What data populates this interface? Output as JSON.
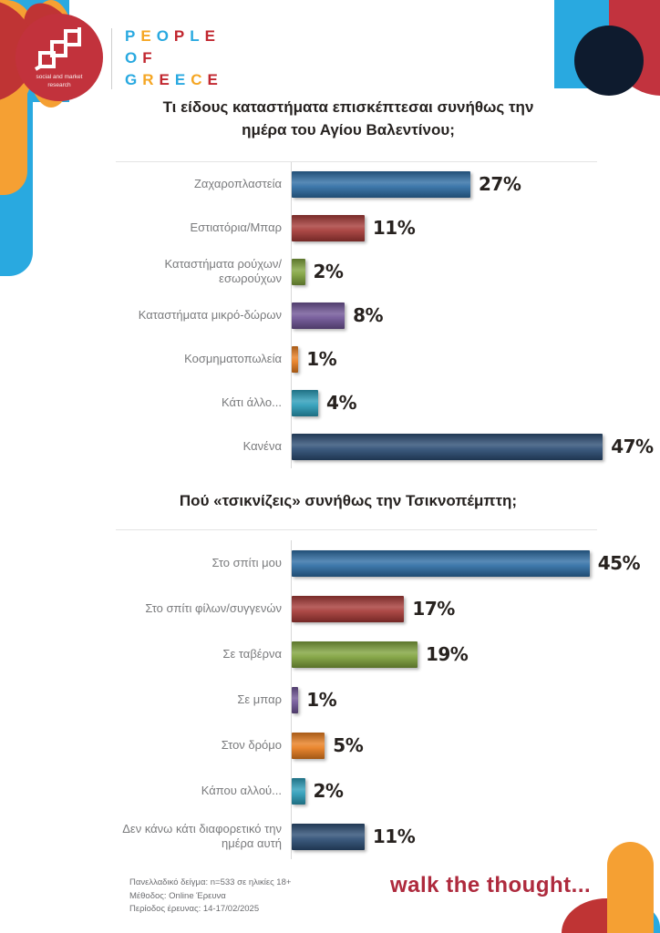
{
  "logo": {
    "monogram": "ged",
    "tagline": [
      "social and market",
      "research"
    ],
    "circle_color": "#c2323c"
  },
  "brand": {
    "words": [
      {
        "text": "PEOPLE",
        "letter_colors": [
          "#29a9e0",
          "#f5a623",
          "#29a9e0",
          "#c1272f",
          "#29a9e0",
          "#c1272f"
        ]
      },
      {
        "text": "OF",
        "letter_colors": [
          "#29a9e0",
          "#c1272f"
        ]
      },
      {
        "text": "GREECE",
        "letter_colors": [
          "#29a9e0",
          "#f5a623",
          "#c1272f",
          "#29a9e0",
          "#f5a623",
          "#c1272f"
        ]
      }
    ]
  },
  "chart_data": [
    {
      "type": "bar",
      "orientation": "horizontal",
      "title": "Τι είδους καταστήματα επισκέπτεσαι συνήθως την ημέρα του Αγίου Βαλεντίνου;",
      "categories": [
        "Ζαχαροπλαστεία",
        "Εστιατόρια/Μπαρ",
        "Καταστήματα ρούχων/εσωρούχων",
        "Καταστήματα μικρό-δώρων",
        "Κοσμηματοπωλεία",
        "Κάτι άλλο...",
        "Κανένα"
      ],
      "values": [
        27,
        11,
        2,
        8,
        1,
        4,
        47
      ],
      "value_labels": [
        "27%",
        "11%",
        "2%",
        "8%",
        "1%",
        "4%",
        "47%"
      ],
      "bar_colors": [
        "#2e6da4",
        "#a63a37",
        "#7fa23c",
        "#6f5496",
        "#e87d1f",
        "#2b9cb8",
        "#2c4d74"
      ],
      "xlim": [
        0,
        50
      ],
      "grid": false,
      "legend": "none"
    },
    {
      "type": "bar",
      "orientation": "horizontal",
      "title": "Πού «τσικνίζεις» συνήθως την Τσικνοπέμπτη;",
      "categories": [
        "Στο σπίτι μου",
        "Στο σπίτι φίλων/συγγενών",
        "Σε ταβέρνα",
        "Σε μπαρ",
        "Στον δρόμο",
        "Κάπου αλλού...",
        "Δεν κάνω κάτι διαφορετικό την ημέρα αυτή"
      ],
      "values": [
        45,
        17,
        19,
        1,
        5,
        2,
        11
      ],
      "value_labels": [
        "45%",
        "17%",
        "19%",
        "1%",
        "5%",
        "2%",
        "11%"
      ],
      "bar_colors": [
        "#2e6da4",
        "#a63a37",
        "#7fa23c",
        "#6f5496",
        "#e87d1f",
        "#2b9cb8",
        "#2c4d74"
      ],
      "xlim": [
        0,
        50
      ],
      "grid": false,
      "legend": "none"
    }
  ],
  "footer": {
    "lines": [
      "Πανελλαδικό δείγμα: n=533 σε ηλικίες 18+",
      "Μέθοδος: Online Έρευνα",
      "Περίοδος έρευνας: 14-17/02/2025"
    ],
    "slogan": "walk the thought..."
  },
  "accent_colors": {
    "deco_orange": "#f5a033",
    "deco_red": "#bf3434",
    "deco_blue": "#29a9e0",
    "deco_navy": "#0e1b2e",
    "slogan_red": "#ae2a3d"
  }
}
